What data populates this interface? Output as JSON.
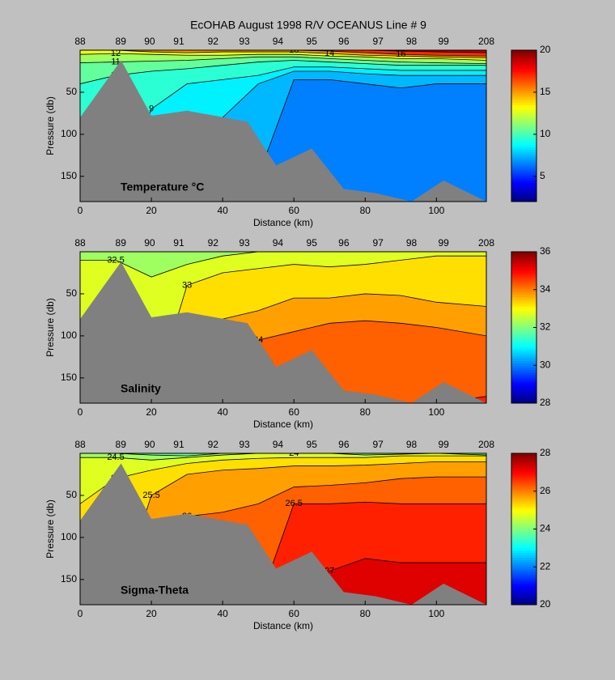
{
  "chart_data": [
    {
      "type": "contour",
      "title": "EcOHAB   August 1998   R/V OCEANUS   Line # 9",
      "label": "Temperature °C",
      "xlabel": "Distance (km)",
      "ylabel": "Pressure (db)",
      "xlim": [
        0,
        114
      ],
      "ylim": [
        0,
        180
      ],
      "y_reversed": true,
      "xticks": [
        0,
        20,
        40,
        60,
        80,
        100
      ],
      "yticks": [
        50,
        100,
        150
      ],
      "stations": {
        "names": [
          "88",
          "89",
          "90",
          "91",
          "92",
          "93",
          "94",
          "95",
          "96",
          "97",
          "98",
          "99",
          "208"
        ],
        "x": [
          0,
          11.4,
          19.5,
          27.7,
          37.3,
          46.1,
          55.5,
          65,
          74,
          83.6,
          93,
          102,
          114
        ]
      },
      "clim": [
        2,
        20
      ],
      "cticks": [
        5,
        10,
        15,
        20
      ],
      "colormap": "jet",
      "x": [
        0,
        10,
        20,
        30,
        40,
        50,
        60,
        70,
        80,
        90,
        100,
        114
      ],
      "contours": [
        {
          "level": 7,
          "y": [
            180,
            180,
            180,
            180,
            180,
            150,
            35,
            35,
            40,
            45,
            40,
            40
          ]
        },
        {
          "level": 8,
          "y": [
            180,
            180,
            180,
            120,
            80,
            40,
            25,
            25,
            28,
            30,
            30,
            30
          ]
        },
        {
          "level": 9,
          "y": [
            180,
            180,
            70,
            40,
            35,
            30,
            20,
            20,
            22,
            24,
            24,
            24
          ]
        },
        {
          "level": 10,
          "y": [
            40,
            30,
            25,
            22,
            18,
            14,
            12,
            14,
            16,
            18,
            18,
            18
          ]
        },
        {
          "level": 11,
          "y": [
            15,
            14,
            13,
            12,
            10,
            8,
            8,
            10,
            12,
            14,
            15,
            16
          ]
        },
        {
          "level": 12,
          "y": [
            5,
            4,
            5,
            6,
            6,
            5,
            5,
            7,
            8,
            10,
            10,
            12
          ]
        },
        {
          "level": 14,
          "y": [
            0,
            0,
            2,
            3,
            2,
            2,
            2,
            4,
            6,
            7,
            8,
            9
          ]
        },
        {
          "level": 16,
          "y": [
            0,
            0,
            0,
            0,
            0,
            0,
            0,
            1,
            3,
            5,
            6,
            7
          ]
        },
        {
          "level": 18,
          "y": [
            0,
            0,
            0,
            0,
            0,
            0,
            0,
            0,
            0,
            1,
            2,
            3
          ]
        }
      ],
      "bottom": {
        "x": [
          0,
          11.5,
          20,
          30,
          47,
          55,
          65,
          74,
          83,
          93,
          102,
          114
        ],
        "y": [
          80,
          12,
          78,
          72,
          85,
          137,
          117,
          165,
          170,
          180,
          155,
          180
        ]
      }
    },
    {
      "type": "contour",
      "label": "Salinity",
      "xlabel": "Distance (km)",
      "ylabel": "Pressure (db)",
      "xlim": [
        0,
        114
      ],
      "ylim": [
        0,
        180
      ],
      "y_reversed": true,
      "xticks": [
        0,
        20,
        40,
        60,
        80,
        100
      ],
      "yticks": [
        50,
        100,
        150
      ],
      "stations": {
        "names": [
          "88",
          "89",
          "90",
          "91",
          "92",
          "93",
          "94",
          "95",
          "96",
          "97",
          "98",
          "99",
          "208"
        ],
        "x": [
          0,
          11.4,
          19.5,
          27.7,
          37.3,
          46.1,
          55.5,
          65,
          74,
          83.6,
          93,
          102,
          114
        ]
      },
      "clim": [
        28,
        36
      ],
      "cticks": [
        28,
        30,
        32,
        34,
        36
      ],
      "colormap": "jet",
      "x": [
        0,
        10,
        20,
        30,
        40,
        50,
        60,
        70,
        80,
        90,
        100,
        114
      ],
      "contours": [
        {
          "level": 34.5,
          "y": [
            180,
            180,
            180,
            180,
            180,
            180,
            180,
            163,
            175,
            180,
            180,
            172
          ]
        },
        {
          "level": 34,
          "y": [
            180,
            180,
            180,
            180,
            180,
            105,
            95,
            85,
            82,
            85,
            90,
            100
          ]
        },
        {
          "level": 33.5,
          "y": [
            180,
            180,
            180,
            90,
            80,
            70,
            55,
            55,
            50,
            52,
            60,
            65
          ]
        },
        {
          "level": 33,
          "y": [
            180,
            180,
            180,
            40,
            25,
            20,
            15,
            18,
            15,
            10,
            5,
            5
          ]
        },
        {
          "level": 32.5,
          "y": [
            10,
            10,
            30,
            15,
            5,
            0,
            0,
            0,
            0,
            0,
            0,
            0
          ]
        }
      ],
      "bottom": {
        "x": [
          0,
          11.5,
          20,
          30,
          47,
          55,
          65,
          74,
          83,
          93,
          102,
          114
        ],
        "y": [
          80,
          12,
          78,
          72,
          85,
          137,
          117,
          165,
          170,
          180,
          155,
          180
        ]
      }
    },
    {
      "type": "contour",
      "label": "Sigma-Theta",
      "xlabel": "Distance (km)",
      "ylabel": "Pressure (db)",
      "xlim": [
        0,
        114
      ],
      "ylim": [
        0,
        180
      ],
      "y_reversed": true,
      "xticks": [
        0,
        20,
        40,
        60,
        80,
        100
      ],
      "yticks": [
        50,
        100,
        150
      ],
      "stations": {
        "names": [
          "88",
          "89",
          "90",
          "91",
          "92",
          "93",
          "94",
          "95",
          "96",
          "97",
          "98",
          "99",
          "208"
        ],
        "x": [
          0,
          11.4,
          19.5,
          27.7,
          37.3,
          46.1,
          55.5,
          65,
          74,
          83.6,
          93,
          102,
          114
        ]
      },
      "clim": [
        20,
        28
      ],
      "cticks": [
        20,
        22,
        24,
        26,
        28
      ],
      "colormap": "jet",
      "x": [
        0,
        10,
        20,
        30,
        40,
        50,
        60,
        70,
        80,
        90,
        100,
        114
      ],
      "contours": [
        {
          "level": 27,
          "y": [
            180,
            180,
            180,
            180,
            180,
            180,
            180,
            140,
            125,
            130,
            130,
            130
          ]
        },
        {
          "level": 26.5,
          "y": [
            180,
            180,
            180,
            180,
            180,
            180,
            60,
            60,
            58,
            60,
            60,
            60
          ]
        },
        {
          "level": 26,
          "y": [
            180,
            180,
            180,
            75,
            70,
            60,
            40,
            38,
            35,
            30,
            28,
            28
          ]
        },
        {
          "level": 25.5,
          "y": [
            180,
            180,
            50,
            25,
            20,
            18,
            15,
            15,
            14,
            12,
            10,
            10
          ]
        },
        {
          "level": 25,
          "y": [
            60,
            30,
            20,
            12,
            8,
            6,
            5,
            5,
            5,
            3,
            3,
            3
          ]
        },
        {
          "level": 24.5,
          "y": [
            5,
            5,
            8,
            5,
            2,
            0,
            0,
            0,
            0,
            0,
            0,
            0
          ]
        },
        {
          "level": 24,
          "y": [
            0,
            0,
            2,
            3,
            0,
            0,
            0,
            0,
            2,
            1,
            0,
            2
          ]
        }
      ],
      "bottom": {
        "x": [
          0,
          11.5,
          20,
          30,
          47,
          55,
          65,
          74,
          83,
          93,
          102,
          114
        ],
        "y": [
          80,
          12,
          78,
          72,
          85,
          137,
          117,
          165,
          170,
          180,
          155,
          180
        ]
      }
    }
  ]
}
